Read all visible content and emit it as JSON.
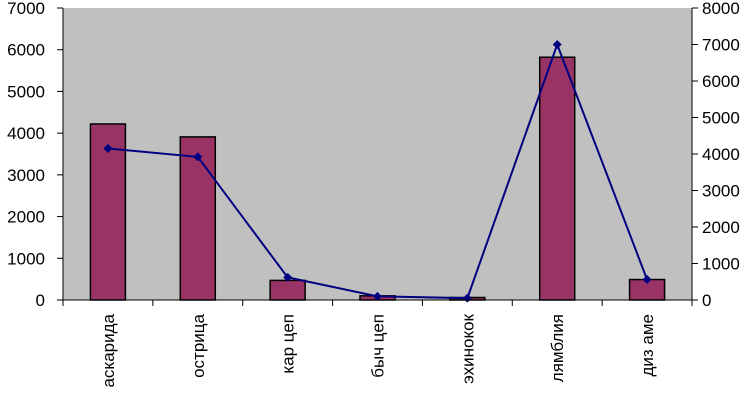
{
  "chart_data": {
    "type": "bar",
    "title": "",
    "xlabel": "",
    "ylabel": "",
    "categories": [
      "аскарида",
      "острица",
      "кар цеп",
      "быч цеп",
      "эхинокок",
      "лямблия",
      "диз аме"
    ],
    "series": [
      {
        "type": "bar",
        "axis": "left",
        "color": "#993366",
        "values": [
          4220,
          3910,
          470,
          100,
          60,
          5820,
          490
        ]
      },
      {
        "type": "line",
        "axis": "right",
        "color": "#000080",
        "values": [
          4150,
          3920,
          620,
          100,
          50,
          7000,
          560
        ]
      }
    ],
    "y_left": {
      "min": 0,
      "max": 7000,
      "step": 1000,
      "ticks": [
        "0",
        "1000",
        "2000",
        "3000",
        "4000",
        "5000",
        "6000",
        "7000"
      ]
    },
    "y_right": {
      "min": 0,
      "max": 8000,
      "step": 1000,
      "ticks": [
        "0",
        "1000",
        "2000",
        "3000",
        "4000",
        "5000",
        "6000",
        "7000",
        "8000"
      ]
    },
    "plot_background": "#c0c0c0",
    "grid": false,
    "legend": "none"
  }
}
